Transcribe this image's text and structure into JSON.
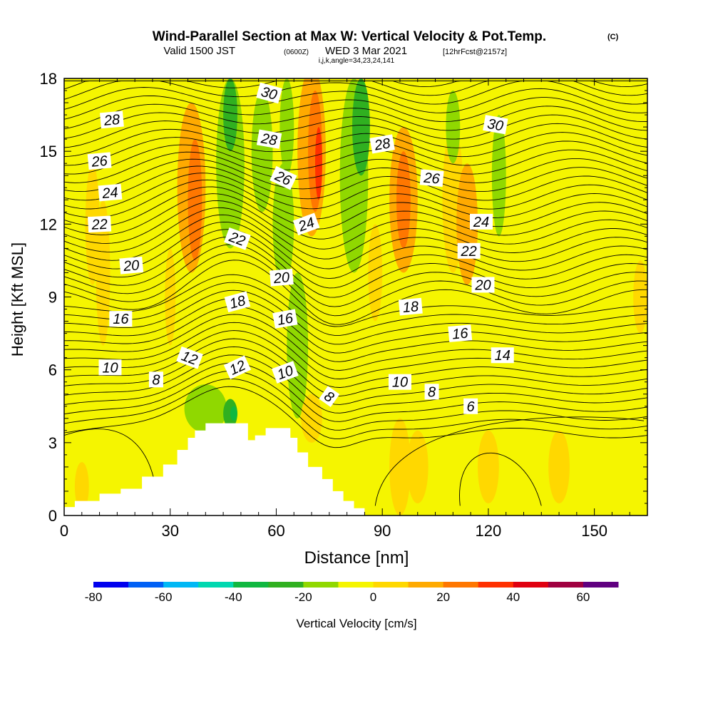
{
  "header": {
    "title": "Wind-Parallel Section at Max W: Vertical Velocity & Pot.Temp.",
    "title_tag": "(C)",
    "valid_prefix": "Valid 1500 JST",
    "valid_utc": "(0600Z)",
    "valid_date": "WED 3 Mar 2021",
    "forecast": "[12hrFcst@2157z]",
    "indices": "i,j,k,angle=34,23,24,141"
  },
  "chart_data": {
    "type": "heatmap",
    "xlabel": "Distance [nm]",
    "ylabel": "Height [Kft MSL]",
    "xlim": [
      0,
      165
    ],
    "ylim": [
      0,
      18
    ],
    "x_ticks": [
      0,
      30,
      60,
      90,
      120,
      150
    ],
    "y_ticks": [
      0,
      3,
      6,
      9,
      12,
      15,
      18
    ],
    "background_color": "#f5f500",
    "terrain": [
      [
        0,
        0.35
      ],
      [
        3,
        0.6
      ],
      [
        10,
        0.9
      ],
      [
        16,
        1.1
      ],
      [
        22,
        1.6
      ],
      [
        28,
        2.1
      ],
      [
        32,
        2.7
      ],
      [
        35,
        3.2
      ],
      [
        37,
        3.5
      ],
      [
        40,
        3.8
      ],
      [
        50,
        3.8
      ],
      [
        52,
        3.1
      ],
      [
        54,
        3.3
      ],
      [
        57,
        3.6
      ],
      [
        60,
        3.6
      ],
      [
        64,
        3.2
      ],
      [
        66,
        2.6
      ],
      [
        69,
        2.0
      ],
      [
        73,
        1.5
      ],
      [
        76,
        1.0
      ],
      [
        79,
        0.6
      ],
      [
        82,
        0.3
      ],
      [
        85,
        0
      ]
    ],
    "vertical_velocity_regions": [
      {
        "cx": 36,
        "cy": 13.5,
        "rx": 4,
        "ry": 3.5,
        "value": 15
      },
      {
        "cx": 37,
        "cy": 13,
        "rx": 2,
        "ry": 2.5,
        "value": 25
      },
      {
        "cx": 47,
        "cy": 14.5,
        "rx": 4,
        "ry": 3.5,
        "value": -15
      },
      {
        "cx": 47,
        "cy": 16.5,
        "rx": 2,
        "ry": 1.5,
        "value": -25
      },
      {
        "cx": 56,
        "cy": 15,
        "rx": 3,
        "ry": 2.5,
        "value": -15
      },
      {
        "cx": 62,
        "cy": 12,
        "rx": 3,
        "ry": 2.5,
        "value": -15
      },
      {
        "cx": 63,
        "cy": 16,
        "rx": 2,
        "ry": 2,
        "value": -15
      },
      {
        "cx": 70,
        "cy": 15,
        "rx": 4,
        "ry": 3.5,
        "value": 15
      },
      {
        "cx": 71,
        "cy": 15,
        "rx": 2,
        "ry": 2.5,
        "value": 25
      },
      {
        "cx": 72,
        "cy": 14.5,
        "rx": 1,
        "ry": 1.5,
        "value": 35
      },
      {
        "cx": 66,
        "cy": 7,
        "rx": 3,
        "ry": 3,
        "value": -15
      },
      {
        "cx": 82,
        "cy": 14,
        "rx": 4,
        "ry": 4,
        "value": -15
      },
      {
        "cx": 84,
        "cy": 16,
        "rx": 2.5,
        "ry": 2,
        "value": -25
      },
      {
        "cx": 88,
        "cy": 10,
        "rx": 2,
        "ry": 2,
        "value": 5
      },
      {
        "cx": 96,
        "cy": 13,
        "rx": 4,
        "ry": 3,
        "value": 15
      },
      {
        "cx": 96,
        "cy": 13,
        "rx": 2,
        "ry": 2,
        "value": 25
      },
      {
        "cx": 110,
        "cy": 13,
        "rx": 3,
        "ry": 3,
        "value": 5
      },
      {
        "cx": 110,
        "cy": 16,
        "rx": 2,
        "ry": 1.5,
        "value": -15
      },
      {
        "cx": 123,
        "cy": 14,
        "rx": 2,
        "ry": 2.5,
        "value": -15
      },
      {
        "cx": 114,
        "cy": 12,
        "rx": 3,
        "ry": 2.5,
        "value": 15
      },
      {
        "cx": 8,
        "cy": 12,
        "rx": 2,
        "ry": 2.5,
        "value": 5
      },
      {
        "cx": 11,
        "cy": 10,
        "rx": 2,
        "ry": 3,
        "value": 5
      },
      {
        "cx": 30,
        "cy": 9,
        "rx": 1.5,
        "ry": 2,
        "value": 5
      },
      {
        "cx": 40,
        "cy": 4.4,
        "rx": 6,
        "ry": 1,
        "value": -15
      },
      {
        "cx": 47,
        "cy": 4.2,
        "rx": 2,
        "ry": 0.6,
        "value": -25
      },
      {
        "cx": 48,
        "cy": 4.2,
        "rx": 1,
        "ry": 0.3,
        "value": -35
      },
      {
        "cx": 70,
        "cy": 4,
        "rx": 3,
        "ry": 1,
        "value": 5
      },
      {
        "cx": 95,
        "cy": 2,
        "rx": 3,
        "ry": 2,
        "value": 5
      },
      {
        "cx": 120,
        "cy": 2,
        "rx": 3,
        "ry": 1.5,
        "value": 5
      },
      {
        "cx": 140,
        "cy": 2,
        "rx": 3,
        "ry": 1.5,
        "value": 5
      },
      {
        "cx": 163,
        "cy": 9,
        "rx": 2,
        "ry": 1.5,
        "value": 5
      },
      {
        "cx": 5,
        "cy": 1.2,
        "rx": 2,
        "ry": 1,
        "value": 5
      },
      {
        "cx": 100,
        "cy": 2,
        "rx": 3,
        "ry": 1.5,
        "value": 5
      }
    ],
    "theta_label_values": [
      "28",
      "26",
      "24",
      "22",
      "20",
      "16",
      "10",
      "8",
      "30",
      "28",
      "26",
      "22",
      "18",
      "12",
      "20",
      "16",
      "12",
      "10",
      "24",
      "28",
      "26",
      "8",
      "18",
      "10",
      "8",
      "16",
      "6",
      "30",
      "24",
      "22",
      "20",
      "14"
    ],
    "theta_labels": [
      {
        "text": "28",
        "x": 13.5,
        "y": 16.3,
        "angle": -5
      },
      {
        "text": "26",
        "x": 10,
        "y": 14.6,
        "angle": -5
      },
      {
        "text": "24",
        "x": 13,
        "y": 13.3,
        "angle": -5
      },
      {
        "text": "22",
        "x": 10,
        "y": 12,
        "angle": -3
      },
      {
        "text": "20",
        "x": 19,
        "y": 10.3,
        "angle": -5
      },
      {
        "text": "16",
        "x": 16,
        "y": 8.1,
        "angle": 0
      },
      {
        "text": "10",
        "x": 13,
        "y": 6.1,
        "angle": 0
      },
      {
        "text": "8",
        "x": 26,
        "y": 5.6,
        "angle": 0
      },
      {
        "text": "30",
        "x": 58,
        "y": 17.4,
        "angle": 15
      },
      {
        "text": "28",
        "x": 58,
        "y": 15.5,
        "angle": 10
      },
      {
        "text": "26",
        "x": 62,
        "y": 13.9,
        "angle": 25
      },
      {
        "text": "22",
        "x": 49,
        "y": 11.4,
        "angle": 20
      },
      {
        "text": "18",
        "x": 49,
        "y": 8.8,
        "angle": -15
      },
      {
        "text": "12",
        "x": 35.5,
        "y": 6.5,
        "angle": 20
      },
      {
        "text": "20",
        "x": 61.5,
        "y": 9.8,
        "angle": -5
      },
      {
        "text": "16",
        "x": 62.5,
        "y": 8.1,
        "angle": -10
      },
      {
        "text": "12",
        "x": 49,
        "y": 6.1,
        "angle": -25
      },
      {
        "text": "10",
        "x": 62.5,
        "y": 5.9,
        "angle": -20
      },
      {
        "text": "24",
        "x": 68.5,
        "y": 12,
        "angle": -20
      },
      {
        "text": "28",
        "x": 90,
        "y": 15.3,
        "angle": -10
      },
      {
        "text": "26",
        "x": 104,
        "y": 13.9,
        "angle": 5
      },
      {
        "text": "8",
        "x": 75,
        "y": 4.9,
        "angle": 35
      },
      {
        "text": "18",
        "x": 98,
        "y": 8.6,
        "angle": -5
      },
      {
        "text": "10",
        "x": 95,
        "y": 5.5,
        "angle": 0
      },
      {
        "text": "8",
        "x": 104,
        "y": 5.1,
        "angle": 0
      },
      {
        "text": "16",
        "x": 112,
        "y": 7.5,
        "angle": -5
      },
      {
        "text": "6",
        "x": 115,
        "y": 4.5,
        "angle": 0
      },
      {
        "text": "30",
        "x": 122,
        "y": 16.1,
        "angle": 10
      },
      {
        "text": "24",
        "x": 118,
        "y": 12.1,
        "angle": 0
      },
      {
        "text": "22",
        "x": 114.5,
        "y": 10.9,
        "angle": 0
      },
      {
        "text": "20",
        "x": 118.5,
        "y": 9.5,
        "angle": 0
      },
      {
        "text": "14",
        "x": 124,
        "y": 6.6,
        "angle": 0
      }
    ],
    "colorbar": {
      "label": "Vertical Velocity [cm/s]",
      "range": [
        -80,
        70
      ],
      "tick_values": [
        -80,
        -60,
        -40,
        -20,
        0,
        20,
        40,
        60
      ],
      "colors": [
        "#0000ee",
        "#0060f5",
        "#00b8f5",
        "#00d8b0",
        "#10b840",
        "#30b020",
        "#90d800",
        "#f5f500",
        "#ffd800",
        "#ffaa00",
        "#ff7700",
        "#ff3000",
        "#e00010",
        "#a00040",
        "#600080"
      ]
    }
  }
}
